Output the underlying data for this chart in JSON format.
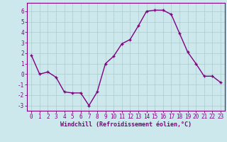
{
  "x": [
    0,
    1,
    2,
    3,
    4,
    5,
    6,
    7,
    8,
    9,
    10,
    11,
    12,
    13,
    14,
    15,
    16,
    17,
    18,
    19,
    20,
    21,
    22,
    23
  ],
  "y": [
    1.8,
    0.0,
    0.2,
    -0.3,
    -1.7,
    -1.8,
    -1.8,
    -3.0,
    -1.7,
    1.0,
    1.7,
    2.9,
    3.3,
    4.6,
    6.0,
    6.1,
    6.1,
    5.7,
    3.9,
    2.1,
    1.0,
    -0.2,
    -0.2,
    -0.8
  ],
  "line_color": "#800080",
  "marker": "+",
  "marker_size": 3,
  "background_color": "#cce8ec",
  "grid_color": "#aacccc",
  "xlabel": "Windchill (Refroidissement éolien,°C)",
  "xlabel_color": "#800080",
  "tick_color": "#800080",
  "ylim": [
    -3.5,
    6.8
  ],
  "xlim": [
    -0.5,
    23.5
  ],
  "yticks": [
    -3,
    -2,
    -1,
    0,
    1,
    2,
    3,
    4,
    5,
    6
  ],
  "xticks": [
    0,
    1,
    2,
    3,
    4,
    5,
    6,
    7,
    8,
    9,
    10,
    11,
    12,
    13,
    14,
    15,
    16,
    17,
    18,
    19,
    20,
    21,
    22,
    23
  ],
  "spine_color": "#800080",
  "line_width": 1.0,
  "tick_fontsize": 5.5,
  "xlabel_fontsize": 6.0
}
